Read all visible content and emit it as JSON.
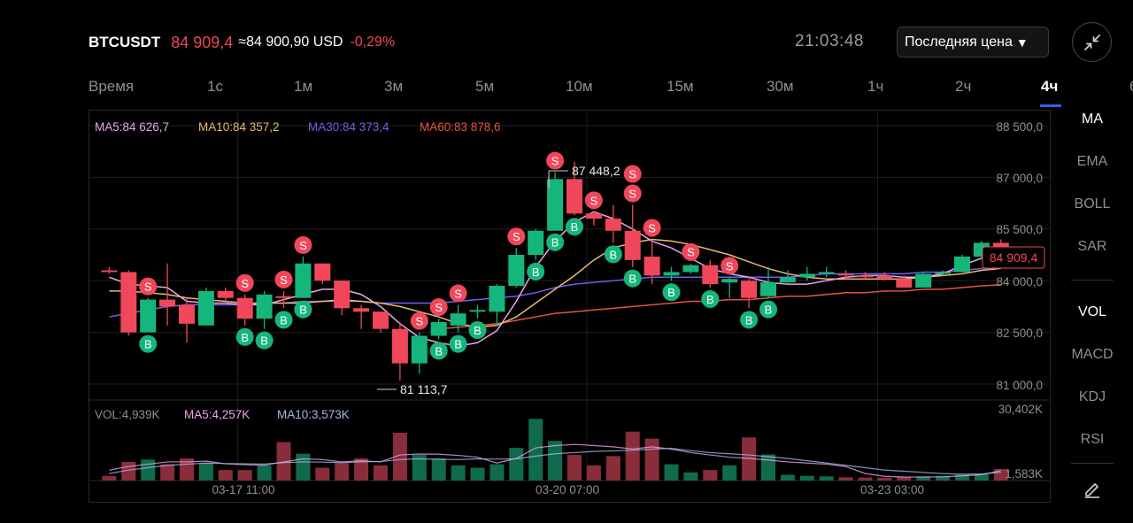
{
  "header": {
    "symbol": "BTCUSDT",
    "last_price": "84 909,4",
    "approx_usd": "≈84 900,90 USD",
    "change_pct": "-0,29%",
    "clock": "21:03:48",
    "price_type": "Последняя цена"
  },
  "timeframes": [
    {
      "label": "Время",
      "active": false
    },
    {
      "label": "1с",
      "active": false
    },
    {
      "label": "1м",
      "active": false
    },
    {
      "label": "3м",
      "active": false
    },
    {
      "label": "5м",
      "active": false
    },
    {
      "label": "10м",
      "active": false
    },
    {
      "label": "15м",
      "active": false
    },
    {
      "label": "30м",
      "active": false
    },
    {
      "label": "1ч",
      "active": false
    },
    {
      "label": "2ч",
      "active": false
    },
    {
      "label": "4ч",
      "active": true
    },
    {
      "label": "6",
      "active": false
    }
  ],
  "indicators_main": [
    {
      "label": "MA",
      "active": true
    },
    {
      "label": "EMA",
      "active": false
    },
    {
      "label": "BOLL",
      "active": false
    },
    {
      "label": "SAR",
      "active": false
    }
  ],
  "indicators_sub": [
    {
      "label": "VOL",
      "active": true
    },
    {
      "label": "MACD",
      "active": false
    },
    {
      "label": "KDJ",
      "active": false
    },
    {
      "label": "RSI",
      "active": false
    }
  ],
  "colors": {
    "up": "#15b67c",
    "down": "#f0475a",
    "ma5": "#e7a6e9",
    "ma10": "#e9b873",
    "ma30": "#6d62e8",
    "ma60": "#e8543f"
  },
  "chart_data": {
    "type": "candlestick",
    "interval": "4h",
    "ylim": [
      80000,
      89200
    ],
    "y_ticks": [
      "88 500,0",
      "87 000,0",
      "85 500,0",
      "84 000,0",
      "82 500,0",
      "81 000,0"
    ],
    "y_tick_values": [
      88500,
      87000,
      85500,
      84000,
      82500,
      81000
    ],
    "x_labels": [
      {
        "i": 7,
        "label": "03-17 11:00"
      },
      {
        "i": 25,
        "label": "03-20 07:00"
      },
      {
        "i": 40,
        "label": "03-23 03:00"
      }
    ],
    "legend": {
      "ma5": "MA5:84 626,7",
      "ma10": "MA10:84 357,2",
      "ma30": "MA30:84 373,4",
      "ma60": "MA60:83 878,6"
    },
    "high_label": "87 448,2",
    "low_label": "81 113,7",
    "last_price_label": "84 909,4",
    "candles": [
      {
        "o": 84300,
        "h": 84400,
        "l": 84200,
        "c": 84250
      },
      {
        "o": 84250,
        "h": 84300,
        "l": 82400,
        "c": 82500
      },
      {
        "o": 82500,
        "h": 83500,
        "l": 82500,
        "c": 83450
      },
      {
        "o": 83450,
        "h": 84500,
        "l": 82700,
        "c": 83250
      },
      {
        "o": 83300,
        "h": 83500,
        "l": 82200,
        "c": 82750
      },
      {
        "o": 82700,
        "h": 83800,
        "l": 82700,
        "c": 83700
      },
      {
        "o": 83700,
        "h": 83800,
        "l": 83400,
        "c": 83500
      },
      {
        "o": 83500,
        "h": 83600,
        "l": 82700,
        "c": 82900
      },
      {
        "o": 82900,
        "h": 83700,
        "l": 82600,
        "c": 83600
      },
      {
        "o": 83550,
        "h": 83700,
        "l": 83200,
        "c": 83500
      },
      {
        "o": 83500,
        "h": 84700,
        "l": 83500,
        "c": 84500
      },
      {
        "o": 84500,
        "h": 84500,
        "l": 83900,
        "c": 84000
      },
      {
        "o": 84000,
        "h": 84000,
        "l": 83000,
        "c": 83200
      },
      {
        "o": 83200,
        "h": 83300,
        "l": 82600,
        "c": 83100
      },
      {
        "o": 83100,
        "h": 83100,
        "l": 82500,
        "c": 82600
      },
      {
        "o": 82600,
        "h": 82800,
        "l": 81100,
        "c": 81600
      },
      {
        "o": 81600,
        "h": 82500,
        "l": 81300,
        "c": 82400
      },
      {
        "o": 82400,
        "h": 82900,
        "l": 82300,
        "c": 82800
      },
      {
        "o": 82700,
        "h": 83300,
        "l": 82500,
        "c": 83050
      },
      {
        "o": 83100,
        "h": 83300,
        "l": 82900,
        "c": 83150
      },
      {
        "o": 83100,
        "h": 83900,
        "l": 82700,
        "c": 83850
      },
      {
        "o": 83850,
        "h": 84950,
        "l": 83800,
        "c": 84750
      },
      {
        "o": 84750,
        "h": 85500,
        "l": 84600,
        "c": 85450
      },
      {
        "o": 85450,
        "h": 87150,
        "l": 85450,
        "c": 86950
      },
      {
        "o": 86950,
        "h": 87450,
        "l": 85900,
        "c": 85950
      },
      {
        "o": 85950,
        "h": 86000,
        "l": 85600,
        "c": 85800
      },
      {
        "o": 85800,
        "h": 86200,
        "l": 85100,
        "c": 85450
      },
      {
        "o": 85450,
        "h": 86200,
        "l": 84400,
        "c": 84600
      },
      {
        "o": 84700,
        "h": 85200,
        "l": 83900,
        "c": 84150
      },
      {
        "o": 84150,
        "h": 84400,
        "l": 84000,
        "c": 84250
      },
      {
        "o": 84250,
        "h": 84500,
        "l": 84200,
        "c": 84450
      },
      {
        "o": 84450,
        "h": 84600,
        "l": 83800,
        "c": 83900
      },
      {
        "o": 83950,
        "h": 84100,
        "l": 83500,
        "c": 84050
      },
      {
        "o": 84000,
        "h": 84100,
        "l": 83200,
        "c": 83500
      },
      {
        "o": 83550,
        "h": 84400,
        "l": 83500,
        "c": 83950
      },
      {
        "o": 83950,
        "h": 84300,
        "l": 83900,
        "c": 84100
      },
      {
        "o": 84100,
        "h": 84400,
        "l": 84000,
        "c": 84200
      },
      {
        "o": 84200,
        "h": 84400,
        "l": 84100,
        "c": 84250
      },
      {
        "o": 84200,
        "h": 84300,
        "l": 84050,
        "c": 84150
      },
      {
        "o": 84150,
        "h": 84250,
        "l": 84050,
        "c": 84100
      },
      {
        "o": 84150,
        "h": 84250,
        "l": 84000,
        "c": 84050
      },
      {
        "o": 84050,
        "h": 84150,
        "l": 83800,
        "c": 83800
      },
      {
        "o": 83800,
        "h": 84250,
        "l": 83800,
        "c": 84200
      },
      {
        "o": 84200,
        "h": 84300,
        "l": 84150,
        "c": 84250
      },
      {
        "o": 84250,
        "h": 84750,
        "l": 84250,
        "c": 84700
      },
      {
        "o": 84700,
        "h": 85150,
        "l": 84650,
        "c": 85100
      },
      {
        "o": 85100,
        "h": 85200,
        "l": 84850,
        "c": 84909.4
      }
    ],
    "ma5": [
      84100,
      83900,
      83850,
      83800,
      83400,
      83350,
      83350,
      83300,
      83300,
      83450,
      83600,
      83750,
      83750,
      83600,
      83250,
      82750,
      82350,
      82200,
      82100,
      82200,
      82550,
      83400,
      84400,
      85150,
      85700,
      86000,
      85800,
      85500,
      85150,
      84950,
      84650,
      84350,
      84200,
      84100,
      83950,
      83900,
      83900,
      84000,
      84100,
      84150,
      84150,
      84100,
      84100,
      84200,
      84450,
      84650,
      84626.7
    ],
    "ma10": [
      83700,
      83700,
      83650,
      83600,
      83500,
      83450,
      83400,
      83350,
      83350,
      83350,
      83350,
      83400,
      83450,
      83400,
      83350,
      83250,
      83100,
      82950,
      82750,
      82650,
      82700,
      82950,
      83350,
      83750,
      84150,
      84600,
      84950,
      85100,
      85200,
      85150,
      85050,
      84900,
      84750,
      84550,
      84350,
      84200,
      84100,
      84050,
      84050,
      84050,
      84050,
      84050,
      84100,
      84150,
      84200,
      84300,
      84357.2
    ],
    "ma30": [
      82950,
      83050,
      83150,
      83250,
      83300,
      83300,
      83300,
      83300,
      83350,
      83350,
      83400,
      83400,
      83400,
      83400,
      83350,
      83350,
      83350,
      83350,
      83400,
      83450,
      83500,
      83550,
      83650,
      83800,
      83900,
      83950,
      84000,
      84050,
      84100,
      84100,
      84100,
      84100,
      84100,
      84100,
      84100,
      84100,
      84150,
      84200,
      84200,
      84200,
      84200,
      84200,
      84250,
      84250,
      84300,
      84350,
      84373.4
    ],
    "ma60": [
      null,
      null,
      null,
      null,
      null,
      null,
      null,
      null,
      null,
      null,
      null,
      null,
      null,
      null,
      null,
      null,
      null,
      82600,
      82650,
      82700,
      82750,
      82850,
      82950,
      83050,
      83100,
      83150,
      83200,
      83250,
      83300,
      83350,
      83400,
      83400,
      83450,
      83450,
      83500,
      83550,
      83550,
      83600,
      83650,
      83650,
      83700,
      83700,
      83750,
      83750,
      83800,
      83850,
      83878.6
    ],
    "signals": [
      {
        "i": 2,
        "t": "S",
        "pos": "above"
      },
      {
        "i": 2,
        "t": "B",
        "pos": "below"
      },
      {
        "i": 7,
        "t": "S",
        "pos": "above"
      },
      {
        "i": 7,
        "t": "B",
        "pos": "below"
      },
      {
        "i": 8,
        "t": "B",
        "pos": "below"
      },
      {
        "i": 9,
        "t": "S",
        "pos": "above"
      },
      {
        "i": 9,
        "t": "B",
        "pos": "below"
      },
      {
        "i": 10,
        "t": "S",
        "pos": "above"
      },
      {
        "i": 10,
        "t": "B",
        "pos": "below"
      },
      {
        "i": 16,
        "t": "S",
        "pos": "above"
      },
      {
        "i": 17,
        "t": "S",
        "pos": "above"
      },
      {
        "i": 17,
        "t": "B",
        "pos": "below"
      },
      {
        "i": 18,
        "t": "S",
        "pos": "above"
      },
      {
        "i": 18,
        "t": "B",
        "pos": "below"
      },
      {
        "i": 19,
        "t": "B",
        "pos": "below"
      },
      {
        "i": 21,
        "t": "S",
        "pos": "above"
      },
      {
        "i": 22,
        "t": "B",
        "pos": "below"
      },
      {
        "i": 23,
        "t": "S",
        "pos": "above"
      },
      {
        "i": 23,
        "t": "B",
        "pos": "below"
      },
      {
        "i": 24,
        "t": "B",
        "pos": "below"
      },
      {
        "i": 25,
        "t": "S",
        "pos": "above"
      },
      {
        "i": 26,
        "t": "B",
        "pos": "below"
      },
      {
        "i": 27,
        "t": "S",
        "pos": "above"
      },
      {
        "i": 27,
        "t": "S",
        "pos": "above"
      },
      {
        "i": 27,
        "t": "B",
        "pos": "below"
      },
      {
        "i": 28,
        "t": "S",
        "pos": "above"
      },
      {
        "i": 29,
        "t": "B",
        "pos": "below"
      },
      {
        "i": 30,
        "t": "S",
        "pos": "above"
      },
      {
        "i": 31,
        "t": "B",
        "pos": "below"
      },
      {
        "i": 32,
        "t": "S",
        "pos": "above"
      },
      {
        "i": 33,
        "t": "B",
        "pos": "below"
      },
      {
        "i": 34,
        "t": "B",
        "pos": "below"
      }
    ],
    "volume": {
      "legend": {
        "vol": "VOL:4,939K",
        "ma5": "MA5:4,257K",
        "ma10": "MA10:3,573K"
      },
      "ylim": [
        0,
        30402
      ],
      "y_ticks": [
        "30,402K",
        "1,583K"
      ],
      "values": [
        2000,
        8000,
        9000,
        7000,
        9500,
        7500,
        4500,
        4500,
        6500,
        16500,
        11500,
        5500,
        7500,
        9500,
        6500,
        20500,
        11000,
        9500,
        6500,
        5500,
        7000,
        14000,
        26500,
        17000,
        11000,
        6500,
        10500,
        21000,
        18000,
        7000,
        3500,
        4500,
        6500,
        18500,
        11200,
        2500,
        2000,
        1800,
        1400,
        1300,
        1200,
        1600,
        1800,
        2000,
        2500,
        3000,
        4939
      ],
      "ma5": [
        4500,
        6000,
        7000,
        8000,
        8000,
        8300,
        7200,
        6800,
        6600,
        8000,
        9300,
        9000,
        8000,
        8500,
        8000,
        11000,
        11400,
        11300,
        10800,
        10000,
        7500,
        9500,
        14000,
        15000,
        15500,
        15000,
        14500,
        13500,
        14500,
        13500,
        12000,
        11000,
        10000,
        9500,
        8800,
        8000,
        7500,
        7000,
        6000,
        3000,
        1800,
        1500,
        1500,
        1600,
        2000,
        2500,
        4257
      ],
      "ma10": [
        3000,
        4500,
        5500,
        6500,
        7000,
        7500,
        7300,
        7200,
        7100,
        7700,
        8000,
        7900,
        7700,
        8000,
        8200,
        9000,
        9300,
        9100,
        9000,
        9300,
        9200,
        9300,
        10500,
        11500,
        12000,
        12500,
        12700,
        13000,
        13500,
        13800,
        12800,
        12000,
        11500,
        11000,
        10200,
        9500,
        8500,
        7500,
        6500,
        5500,
        4500,
        4000,
        3500,
        3000,
        2700,
        2800,
        3573
      ]
    }
  }
}
